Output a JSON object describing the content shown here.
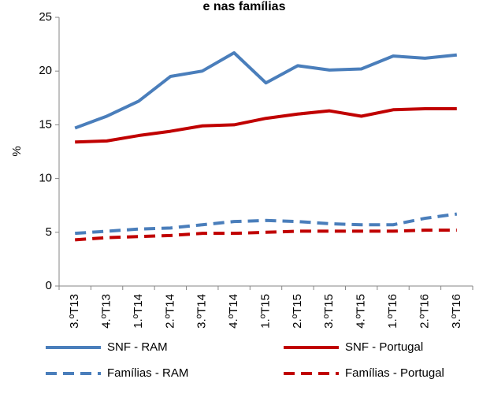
{
  "chart_data": {
    "type": "line",
    "title": "e nas famílias",
    "y_label": "%",
    "categories": [
      "3.ºT13",
      "4.ºT13",
      "1.ºT14",
      "2.ºT14",
      "3.ºT14",
      "4.ºT14",
      "1.ºT15",
      "2.ºT15",
      "3.ºT15",
      "4.ºT15",
      "1.ºT16",
      "2.ºT16",
      "3.ºT16"
    ],
    "series": [
      {
        "name": "SNF - RAM",
        "color": "#4a7ebb",
        "dashed": false,
        "values": [
          14.7,
          15.8,
          17.2,
          19.5,
          20.0,
          21.7,
          18.9,
          20.5,
          20.1,
          20.2,
          21.4,
          21.2,
          21.5
        ]
      },
      {
        "name": "SNF - Portugal",
        "color": "#c00000",
        "dashed": false,
        "values": [
          13.4,
          13.5,
          14.0,
          14.4,
          14.9,
          15.0,
          15.6,
          16.0,
          16.3,
          15.8,
          16.4,
          16.5,
          16.5
        ]
      },
      {
        "name": "Famílias - RAM",
        "color": "#4a7ebb",
        "dashed": true,
        "values": [
          4.9,
          5.1,
          5.3,
          5.4,
          5.7,
          6.0,
          6.1,
          6.0,
          5.8,
          5.7,
          5.7,
          6.3,
          6.7
        ]
      },
      {
        "name": "Famílias - Portugal",
        "color": "#c00000",
        "dashed": true,
        "values": [
          4.3,
          4.5,
          4.6,
          4.7,
          4.9,
          4.9,
          5.0,
          5.1,
          5.1,
          5.1,
          5.1,
          5.2,
          5.2
        ]
      }
    ],
    "ylim": [
      0,
      25
    ],
    "yticks": [
      0,
      5,
      10,
      15,
      20,
      25
    ],
    "grid": false,
    "legend": "bottom"
  }
}
